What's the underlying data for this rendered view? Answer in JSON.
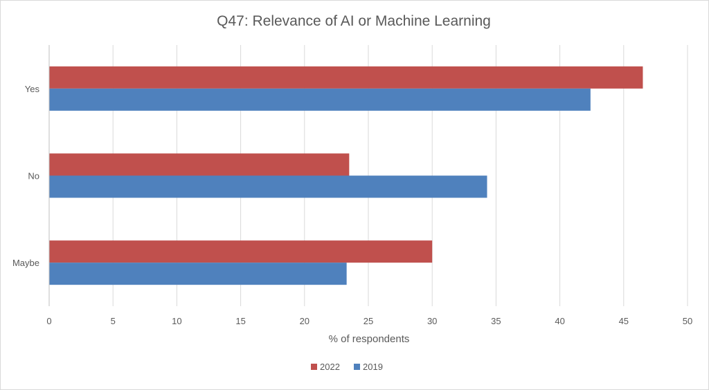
{
  "chart_data": {
    "type": "bar",
    "orientation": "horizontal",
    "title": "Q47: Relevance of AI or Machine Learning",
    "xlabel": "% of respondents",
    "ylabel": "",
    "categories": [
      "Yes",
      "No",
      "Maybe"
    ],
    "series": [
      {
        "name": "2022",
        "color": "#c0504d",
        "values": [
          46.5,
          23.5,
          30.0
        ]
      },
      {
        "name": "2019",
        "color": "#4f81bd",
        "values": [
          42.4,
          34.3,
          23.3
        ]
      }
    ],
    "xlim": [
      0,
      50
    ],
    "xticks": [
      "0",
      "5",
      "10",
      "15",
      "20",
      "25",
      "30",
      "35",
      "40",
      "45",
      "50"
    ],
    "grid": true,
    "legend_position": "bottom"
  }
}
